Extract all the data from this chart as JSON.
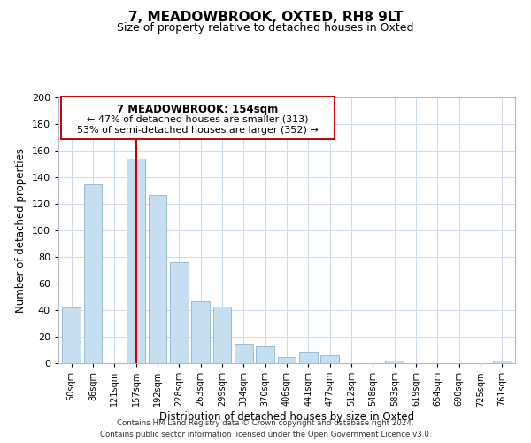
{
  "title": "7, MEADOWBROOK, OXTED, RH8 9LT",
  "subtitle": "Size of property relative to detached houses in Oxted",
  "xlabel": "Distribution of detached houses by size in Oxted",
  "ylabel": "Number of detached properties",
  "bar_color": "#c5dff0",
  "bar_edge_color": "#8ab4d4",
  "vline_color": "#cc0000",
  "vline_index": 3,
  "annotation_title": "7 MEADOWBROOK: 154sqm",
  "annotation_line1": "← 47% of detached houses are smaller (313)",
  "annotation_line2": "53% of semi-detached houses are larger (352) →",
  "categories": [
    "50sqm",
    "86sqm",
    "121sqm",
    "157sqm",
    "192sqm",
    "228sqm",
    "263sqm",
    "299sqm",
    "334sqm",
    "370sqm",
    "406sqm",
    "441sqm",
    "477sqm",
    "512sqm",
    "548sqm",
    "583sqm",
    "619sqm",
    "654sqm",
    "690sqm",
    "725sqm",
    "761sqm"
  ],
  "values": [
    42,
    135,
    0,
    154,
    127,
    76,
    47,
    43,
    15,
    13,
    5,
    9,
    6,
    0,
    0,
    2,
    0,
    0,
    0,
    0,
    2
  ],
  "ylim": [
    0,
    200
  ],
  "yticks": [
    0,
    20,
    40,
    60,
    80,
    100,
    120,
    140,
    160,
    180,
    200
  ],
  "footer_line1": "Contains HM Land Registry data © Crown copyright and database right 2024.",
  "footer_line2": "Contains public sector information licensed under the Open Government Licence v3.0.",
  "background_color": "#ffffff",
  "grid_color": "#ccd9e8"
}
